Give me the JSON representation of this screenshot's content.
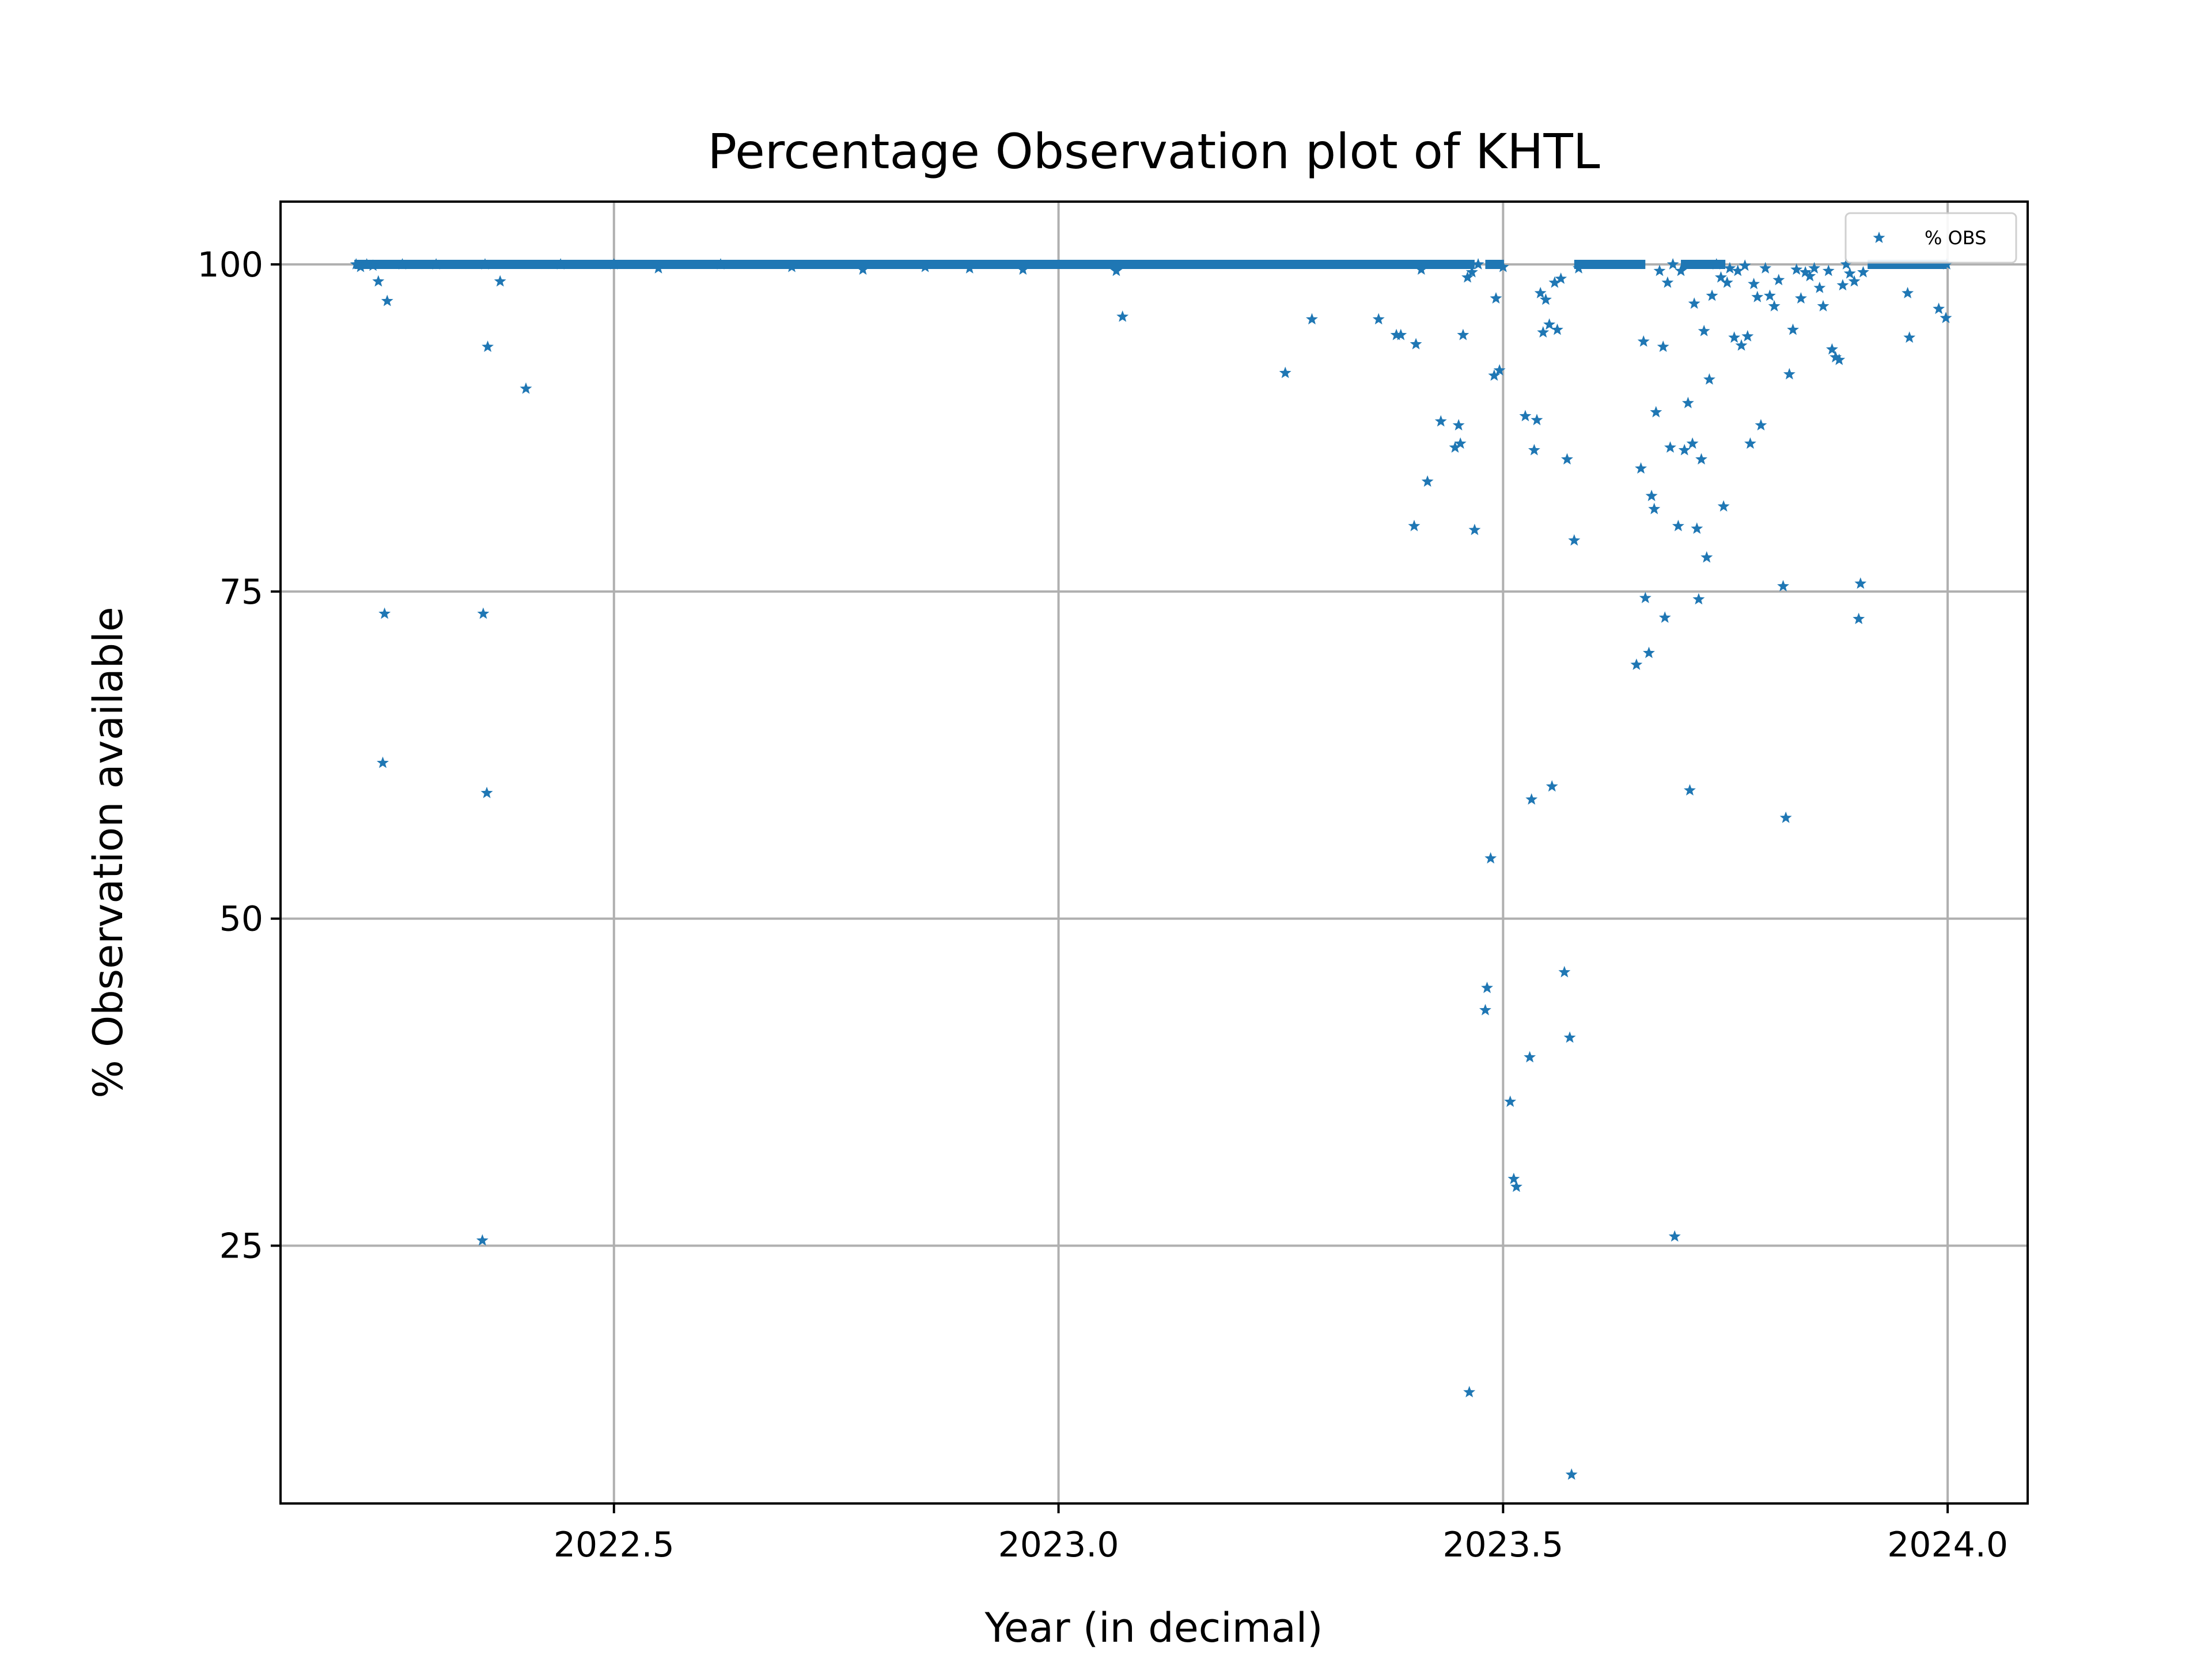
{
  "chart_data": {
    "type": "scatter",
    "title": "Percentage Observation plot of KHTL",
    "xlabel": "Year (in decimal)",
    "ylabel": "% Observation available",
    "xlim": [
      2022.125,
      2024.09
    ],
    "ylim": [
      5.3,
      104.8
    ],
    "xticks": [
      2022.5,
      2023.0,
      2023.5,
      2024.0
    ],
    "xtick_labels": [
      "2022.5",
      "2023.0",
      "2023.5",
      "2024.0"
    ],
    "yticks": [
      25,
      50,
      75,
      100
    ],
    "ytick_labels": [
      "25",
      "50",
      "75",
      "100"
    ],
    "grid": true,
    "legend": {
      "placement": "top-right",
      "entries": [
        "% OBS"
      ]
    },
    "color": "#1f77b4",
    "marker": "pentagon-star",
    "baseline_segments": [
      {
        "x": [
          2022.208,
          2023.468
        ],
        "y": 100
      },
      {
        "x": [
          2023.48,
          2023.501
        ],
        "y": 100
      },
      {
        "x": [
          2023.58,
          2023.66
        ],
        "y": 100
      },
      {
        "x": [
          2023.7,
          2023.75
        ],
        "y": 100
      },
      {
        "x": [
          2023.91,
          2023.999
        ],
        "y": 100
      }
    ],
    "series": [
      {
        "name": "% OBS",
        "points": [
          [
            2022.21,
            100
          ],
          [
            2022.215,
            99.8
          ],
          [
            2022.222,
            100
          ],
          [
            2022.229,
            99.9
          ],
          [
            2022.235,
            98.7
          ],
          [
            2022.24,
            61.9
          ],
          [
            2022.242,
            73.3
          ],
          [
            2022.245,
            97.2
          ],
          [
            2022.262,
            100
          ],
          [
            2022.3,
            100
          ],
          [
            2022.352,
            25.4
          ],
          [
            2022.353,
            73.3
          ],
          [
            2022.355,
            100
          ],
          [
            2022.357,
            59.6
          ],
          [
            2022.358,
            93.7
          ],
          [
            2022.372,
            98.7
          ],
          [
            2022.401,
            90.5
          ],
          [
            2022.44,
            100
          ],
          [
            2022.5,
            100
          ],
          [
            2022.55,
            99.7
          ],
          [
            2022.62,
            100
          ],
          [
            2022.7,
            99.8
          ],
          [
            2022.78,
            99.6
          ],
          [
            2022.85,
            99.8
          ],
          [
            2022.9,
            99.7
          ],
          [
            2022.96,
            99.6
          ],
          [
            2023.065,
            99.5
          ],
          [
            2023.072,
            96.0
          ],
          [
            2023.255,
            91.7
          ],
          [
            2023.285,
            95.8
          ],
          [
            2023.36,
            95.8
          ],
          [
            2023.38,
            94.6
          ],
          [
            2023.385,
            94.6
          ],
          [
            2023.4,
            80.0
          ],
          [
            2023.402,
            93.9
          ],
          [
            2023.408,
            99.6
          ],
          [
            2023.415,
            83.4
          ],
          [
            2023.43,
            88.0
          ],
          [
            2023.446,
            86.0
          ],
          [
            2023.45,
            87.7
          ],
          [
            2023.452,
            86.3
          ],
          [
            2023.455,
            94.6
          ],
          [
            2023.462,
            13.8
          ],
          [
            2023.46,
            99.0
          ],
          [
            2023.465,
            99.4
          ],
          [
            2023.468,
            79.7
          ],
          [
            2023.472,
            100
          ],
          [
            2023.48,
            43.0
          ],
          [
            2023.482,
            44.7
          ],
          [
            2023.486,
            54.6
          ],
          [
            2023.49,
            91.5
          ],
          [
            2023.492,
            97.4
          ],
          [
            2023.496,
            91.9
          ],
          [
            2023.5,
            99.8
          ],
          [
            2023.508,
            36.0
          ],
          [
            2023.512,
            30.1
          ],
          [
            2023.515,
            29.5
          ],
          [
            2023.525,
            88.4
          ],
          [
            2023.53,
            39.4
          ],
          [
            2023.532,
            59.1
          ],
          [
            2023.535,
            85.8
          ],
          [
            2023.538,
            88.1
          ],
          [
            2023.542,
            97.8
          ],
          [
            2023.545,
            94.8
          ],
          [
            2023.548,
            97.3
          ],
          [
            2023.552,
            95.4
          ],
          [
            2023.555,
            60.1
          ],
          [
            2023.558,
            98.6
          ],
          [
            2023.561,
            95.0
          ],
          [
            2023.565,
            98.9
          ],
          [
            2023.569,
            45.9
          ],
          [
            2023.572,
            85.1
          ],
          [
            2023.575,
            40.9
          ],
          [
            2023.577,
            7.5
          ],
          [
            2023.58,
            78.9
          ],
          [
            2023.585,
            99.7
          ],
          [
            2023.65,
            69.4
          ],
          [
            2023.655,
            84.4
          ],
          [
            2023.658,
            94.1
          ],
          [
            2023.66,
            74.5
          ],
          [
            2023.664,
            70.3
          ],
          [
            2023.667,
            82.3
          ],
          [
            2023.67,
            81.3
          ],
          [
            2023.672,
            88.7
          ],
          [
            2023.676,
            99.5
          ],
          [
            2023.68,
            93.7
          ],
          [
            2023.682,
            73.0
          ],
          [
            2023.685,
            98.6
          ],
          [
            2023.688,
            86.0
          ],
          [
            2023.691,
            100
          ],
          [
            2023.693,
            25.7
          ],
          [
            2023.697,
            80.0
          ],
          [
            2023.7,
            99.5
          ],
          [
            2023.704,
            85.8
          ],
          [
            2023.708,
            89.4
          ],
          [
            2023.71,
            59.8
          ],
          [
            2023.713,
            86.3
          ],
          [
            2023.715,
            97.0
          ],
          [
            2023.718,
            79.8
          ],
          [
            2023.72,
            74.4
          ],
          [
            2023.723,
            85.1
          ],
          [
            2023.726,
            94.9
          ],
          [
            2023.729,
            77.6
          ],
          [
            2023.732,
            91.2
          ],
          [
            2023.735,
            97.6
          ],
          [
            2023.74,
            100
          ],
          [
            2023.745,
            99.0
          ],
          [
            2023.748,
            81.5
          ],
          [
            2023.752,
            98.6
          ],
          [
            2023.755,
            99.7
          ],
          [
            2023.76,
            94.4
          ],
          [
            2023.764,
            99.5
          ],
          [
            2023.768,
            93.8
          ],
          [
            2023.772,
            99.9
          ],
          [
            2023.775,
            94.5
          ],
          [
            2023.778,
            86.3
          ],
          [
            2023.782,
            98.5
          ],
          [
            2023.786,
            97.5
          ],
          [
            2023.79,
            87.7
          ],
          [
            2023.795,
            99.7
          ],
          [
            2023.8,
            97.6
          ],
          [
            2023.805,
            96.8
          ],
          [
            2023.81,
            98.8
          ],
          [
            2023.815,
            75.4
          ],
          [
            2023.818,
            57.7
          ],
          [
            2023.822,
            91.6
          ],
          [
            2023.826,
            95.0
          ],
          [
            2023.83,
            99.6
          ],
          [
            2023.835,
            97.4
          ],
          [
            2023.84,
            99.4
          ],
          [
            2023.845,
            99.1
          ],
          [
            2023.85,
            99.7
          ],
          [
            2023.856,
            98.2
          ],
          [
            2023.86,
            96.8
          ],
          [
            2023.866,
            99.5
          ],
          [
            2023.87,
            93.5
          ],
          [
            2023.874,
            92.9
          ],
          [
            2023.878,
            92.7
          ],
          [
            2023.882,
            98.4
          ],
          [
            2023.886,
            100
          ],
          [
            2023.89,
            99.3
          ],
          [
            2023.895,
            98.7
          ],
          [
            2023.9,
            72.9
          ],
          [
            2023.902,
            75.6
          ],
          [
            2023.905,
            99.4
          ],
          [
            2023.955,
            97.8
          ],
          [
            2023.957,
            94.4
          ],
          [
            2023.99,
            96.6
          ],
          [
            2023.998,
            95.9
          ],
          [
            2023.999,
            100
          ]
        ]
      }
    ]
  }
}
